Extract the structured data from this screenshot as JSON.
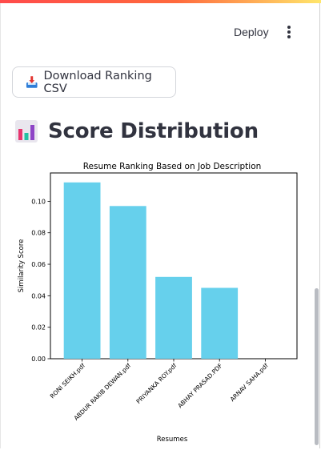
{
  "header": {
    "deploy_label": "Deploy"
  },
  "actions": {
    "download_label": "Download Ranking CSV"
  },
  "section": {
    "title": "Score Distribution"
  },
  "colors": {
    "bar": "#66d0ec",
    "accent": "#ff4b4b"
  },
  "chart_data": {
    "type": "bar",
    "title": "Resume Ranking Based on Job Description",
    "xlabel": "Resumes",
    "ylabel": "Similarity Score",
    "categories": [
      "RONI SEIKH.pdf",
      "ABDUR RAKIB DEWAN.pdf",
      "PRIYANKA ROY.pdf",
      "ABHAY PRASAD.PDF",
      "ARNAV SAHA.pdf"
    ],
    "values": [
      0.112,
      0.097,
      0.052,
      0.045,
      0.0
    ],
    "ylim": [
      0,
      0.118
    ],
    "yticks": [
      "0.00",
      "0.02",
      "0.04",
      "0.06",
      "0.08",
      "0.10"
    ],
    "grid": false
  }
}
